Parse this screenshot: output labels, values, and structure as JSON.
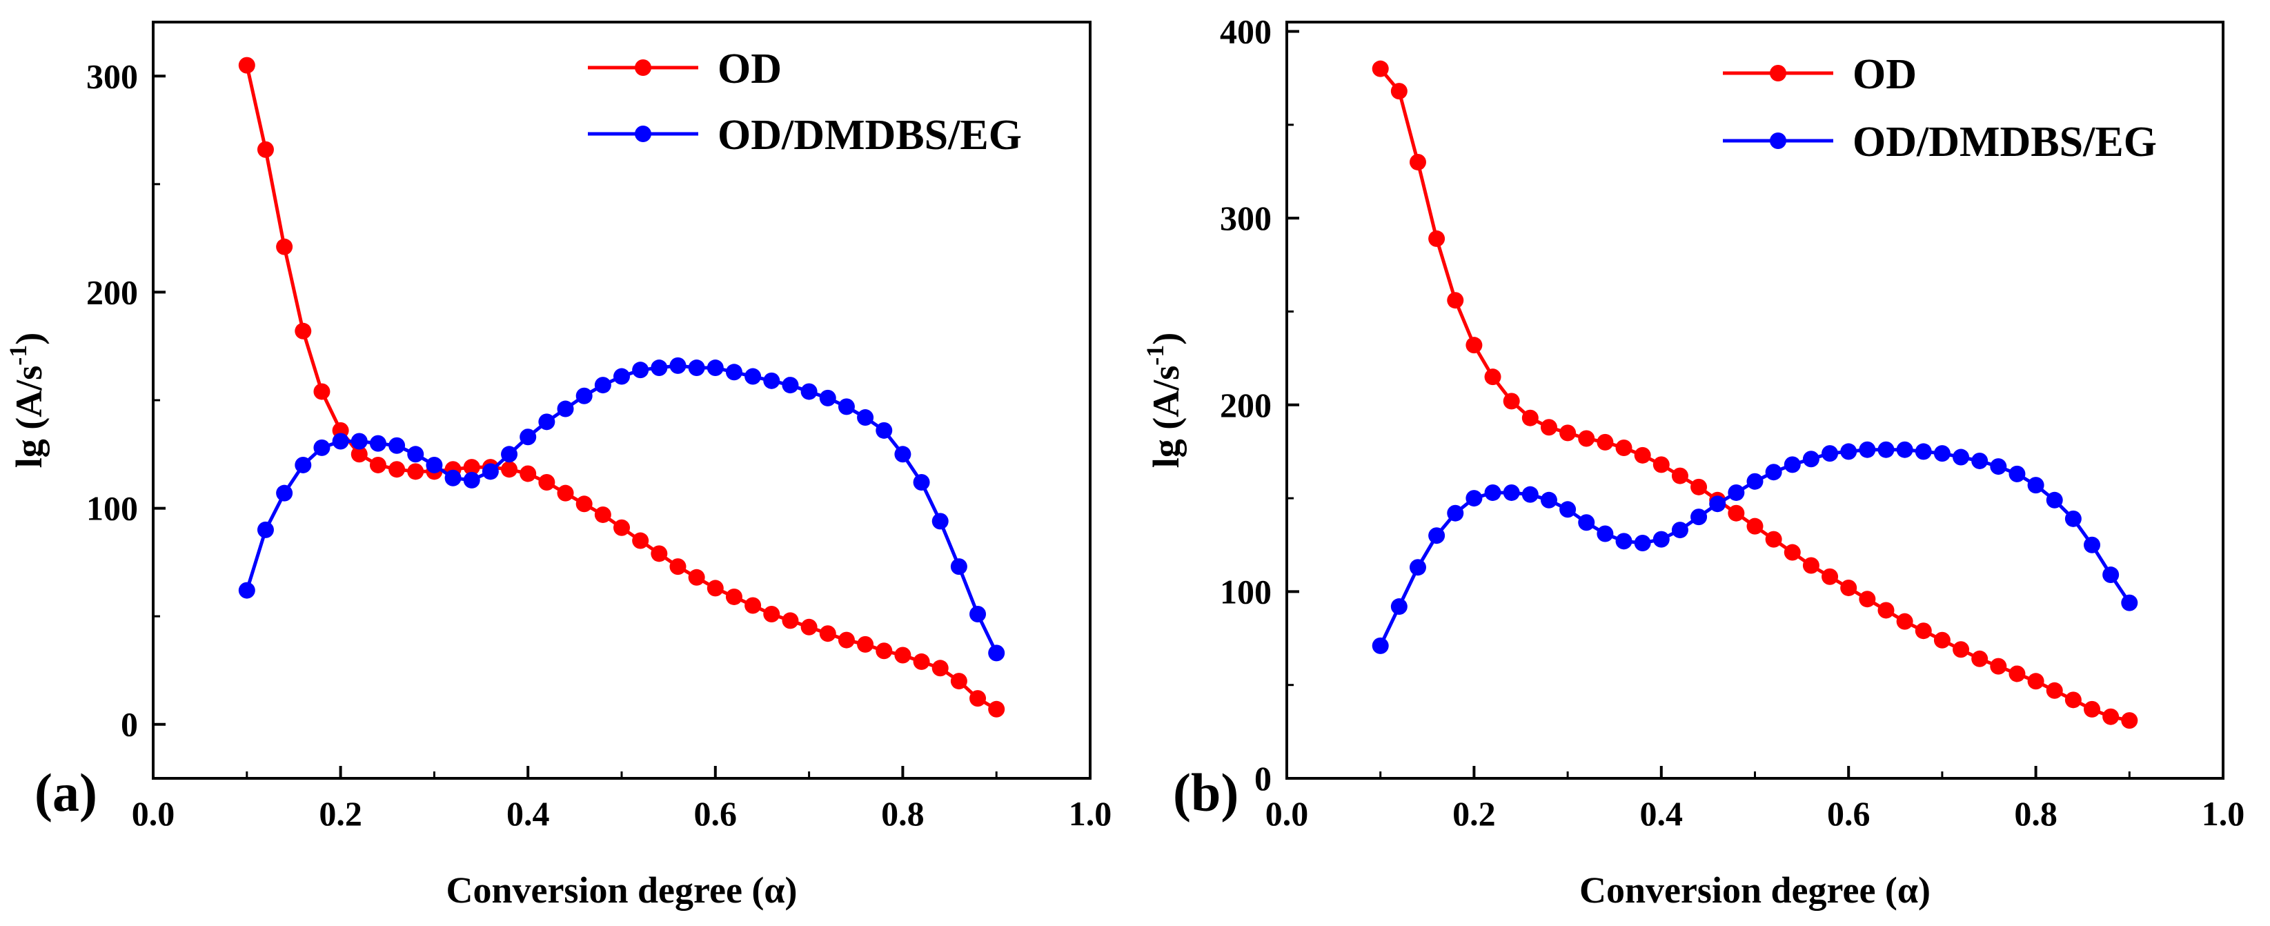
{
  "chart_data": [
    {
      "type": "line",
      "panel_label": "(a)",
      "xlabel": "Conversion degree (α)",
      "ylabel": {
        "main": "lg (A/s",
        "superscript": "-1",
        "close": ")"
      },
      "xlim": [
        0.0,
        1.0
      ],
      "ylim": [
        -25,
        325
      ],
      "x_ticks": [
        0.0,
        0.2,
        0.4,
        0.6,
        0.8,
        1.0
      ],
      "x_tick_labels": [
        "0.0",
        "0.2",
        "0.4",
        "0.6",
        "0.8",
        "1.0"
      ],
      "y_ticks": [
        0,
        100,
        200,
        300
      ],
      "y_tick_labels": [
        "0",
        "100",
        "200",
        "300"
      ],
      "legend_position": "top-right",
      "x": [
        0.1,
        0.12,
        0.14,
        0.16,
        0.18,
        0.2,
        0.22,
        0.24,
        0.26,
        0.28,
        0.3,
        0.32,
        0.34,
        0.36,
        0.38,
        0.4,
        0.42,
        0.44,
        0.46,
        0.48,
        0.5,
        0.52,
        0.54,
        0.56,
        0.58,
        0.6,
        0.62,
        0.64,
        0.66,
        0.68,
        0.7,
        0.72,
        0.74,
        0.76,
        0.78,
        0.8,
        0.82,
        0.84,
        0.86,
        0.88,
        0.9
      ],
      "series": [
        {
          "name": "OD",
          "color": "#ff0000",
          "values": [
            305,
            266,
            221,
            182,
            154,
            136,
            125,
            120,
            118,
            117,
            117,
            118,
            119,
            119,
            118,
            116,
            112,
            107,
            102,
            97,
            91,
            85,
            79,
            73,
            68,
            63,
            59,
            55,
            51,
            48,
            45,
            42,
            39,
            37,
            34,
            32,
            29,
            26,
            20,
            12,
            7
          ]
        },
        {
          "name": "OD/DMDBS/EG",
          "color": "#0000ff",
          "values": [
            62,
            90,
            107,
            120,
            128,
            131,
            131,
            130,
            129,
            125,
            120,
            114,
            113,
            117,
            125,
            133,
            140,
            146,
            152,
            157,
            161,
            164,
            165,
            166,
            165,
            165,
            163,
            161,
            159,
            157,
            154,
            151,
            147,
            142,
            136,
            125,
            112,
            94,
            73,
            51,
            33
          ]
        }
      ]
    },
    {
      "type": "line",
      "panel_label": "(b)",
      "xlabel": "Conversion degree (α)",
      "ylabel": {
        "main": "lg (A/s",
        "superscript": "-1",
        "close": ")"
      },
      "xlim": [
        0.0,
        1.0
      ],
      "ylim": [
        0,
        405
      ],
      "x_ticks": [
        0.0,
        0.2,
        0.4,
        0.6,
        0.8,
        1.0
      ],
      "x_tick_labels": [
        "0.0",
        "0.2",
        "0.4",
        "0.6",
        "0.8",
        "1.0"
      ],
      "y_ticks": [
        0,
        100,
        200,
        300,
        400
      ],
      "y_tick_labels": [
        "0",
        "100",
        "200",
        "300",
        "400"
      ],
      "legend_position": "top-right",
      "x": [
        0.1,
        0.12,
        0.14,
        0.16,
        0.18,
        0.2,
        0.22,
        0.24,
        0.26,
        0.28,
        0.3,
        0.32,
        0.34,
        0.36,
        0.38,
        0.4,
        0.42,
        0.44,
        0.46,
        0.48,
        0.5,
        0.52,
        0.54,
        0.56,
        0.58,
        0.6,
        0.62,
        0.64,
        0.66,
        0.68,
        0.7,
        0.72,
        0.74,
        0.76,
        0.78,
        0.8,
        0.82,
        0.84,
        0.86,
        0.88,
        0.9
      ],
      "series": [
        {
          "name": "OD",
          "color": "#ff0000",
          "values": [
            380,
            368,
            330,
            289,
            256,
            232,
            215,
            202,
            193,
            188,
            185,
            182,
            180,
            177,
            173,
            168,
            162,
            156,
            149,
            142,
            135,
            128,
            121,
            114,
            108,
            102,
            96,
            90,
            84,
            79,
            74,
            69,
            64,
            60,
            56,
            52,
            47,
            42,
            37,
            33,
            31
          ]
        },
        {
          "name": "OD/DMDBS/EG",
          "color": "#0000ff",
          "values": [
            71,
            92,
            113,
            130,
            142,
            150,
            153,
            153,
            152,
            149,
            144,
            137,
            131,
            127,
            126,
            128,
            133,
            140,
            147,
            153,
            159,
            164,
            168,
            171,
            174,
            175,
            176,
            176,
            176,
            175,
            174,
            172,
            170,
            167,
            163,
            157,
            149,
            139,
            125,
            109,
            94
          ]
        }
      ]
    }
  ]
}
